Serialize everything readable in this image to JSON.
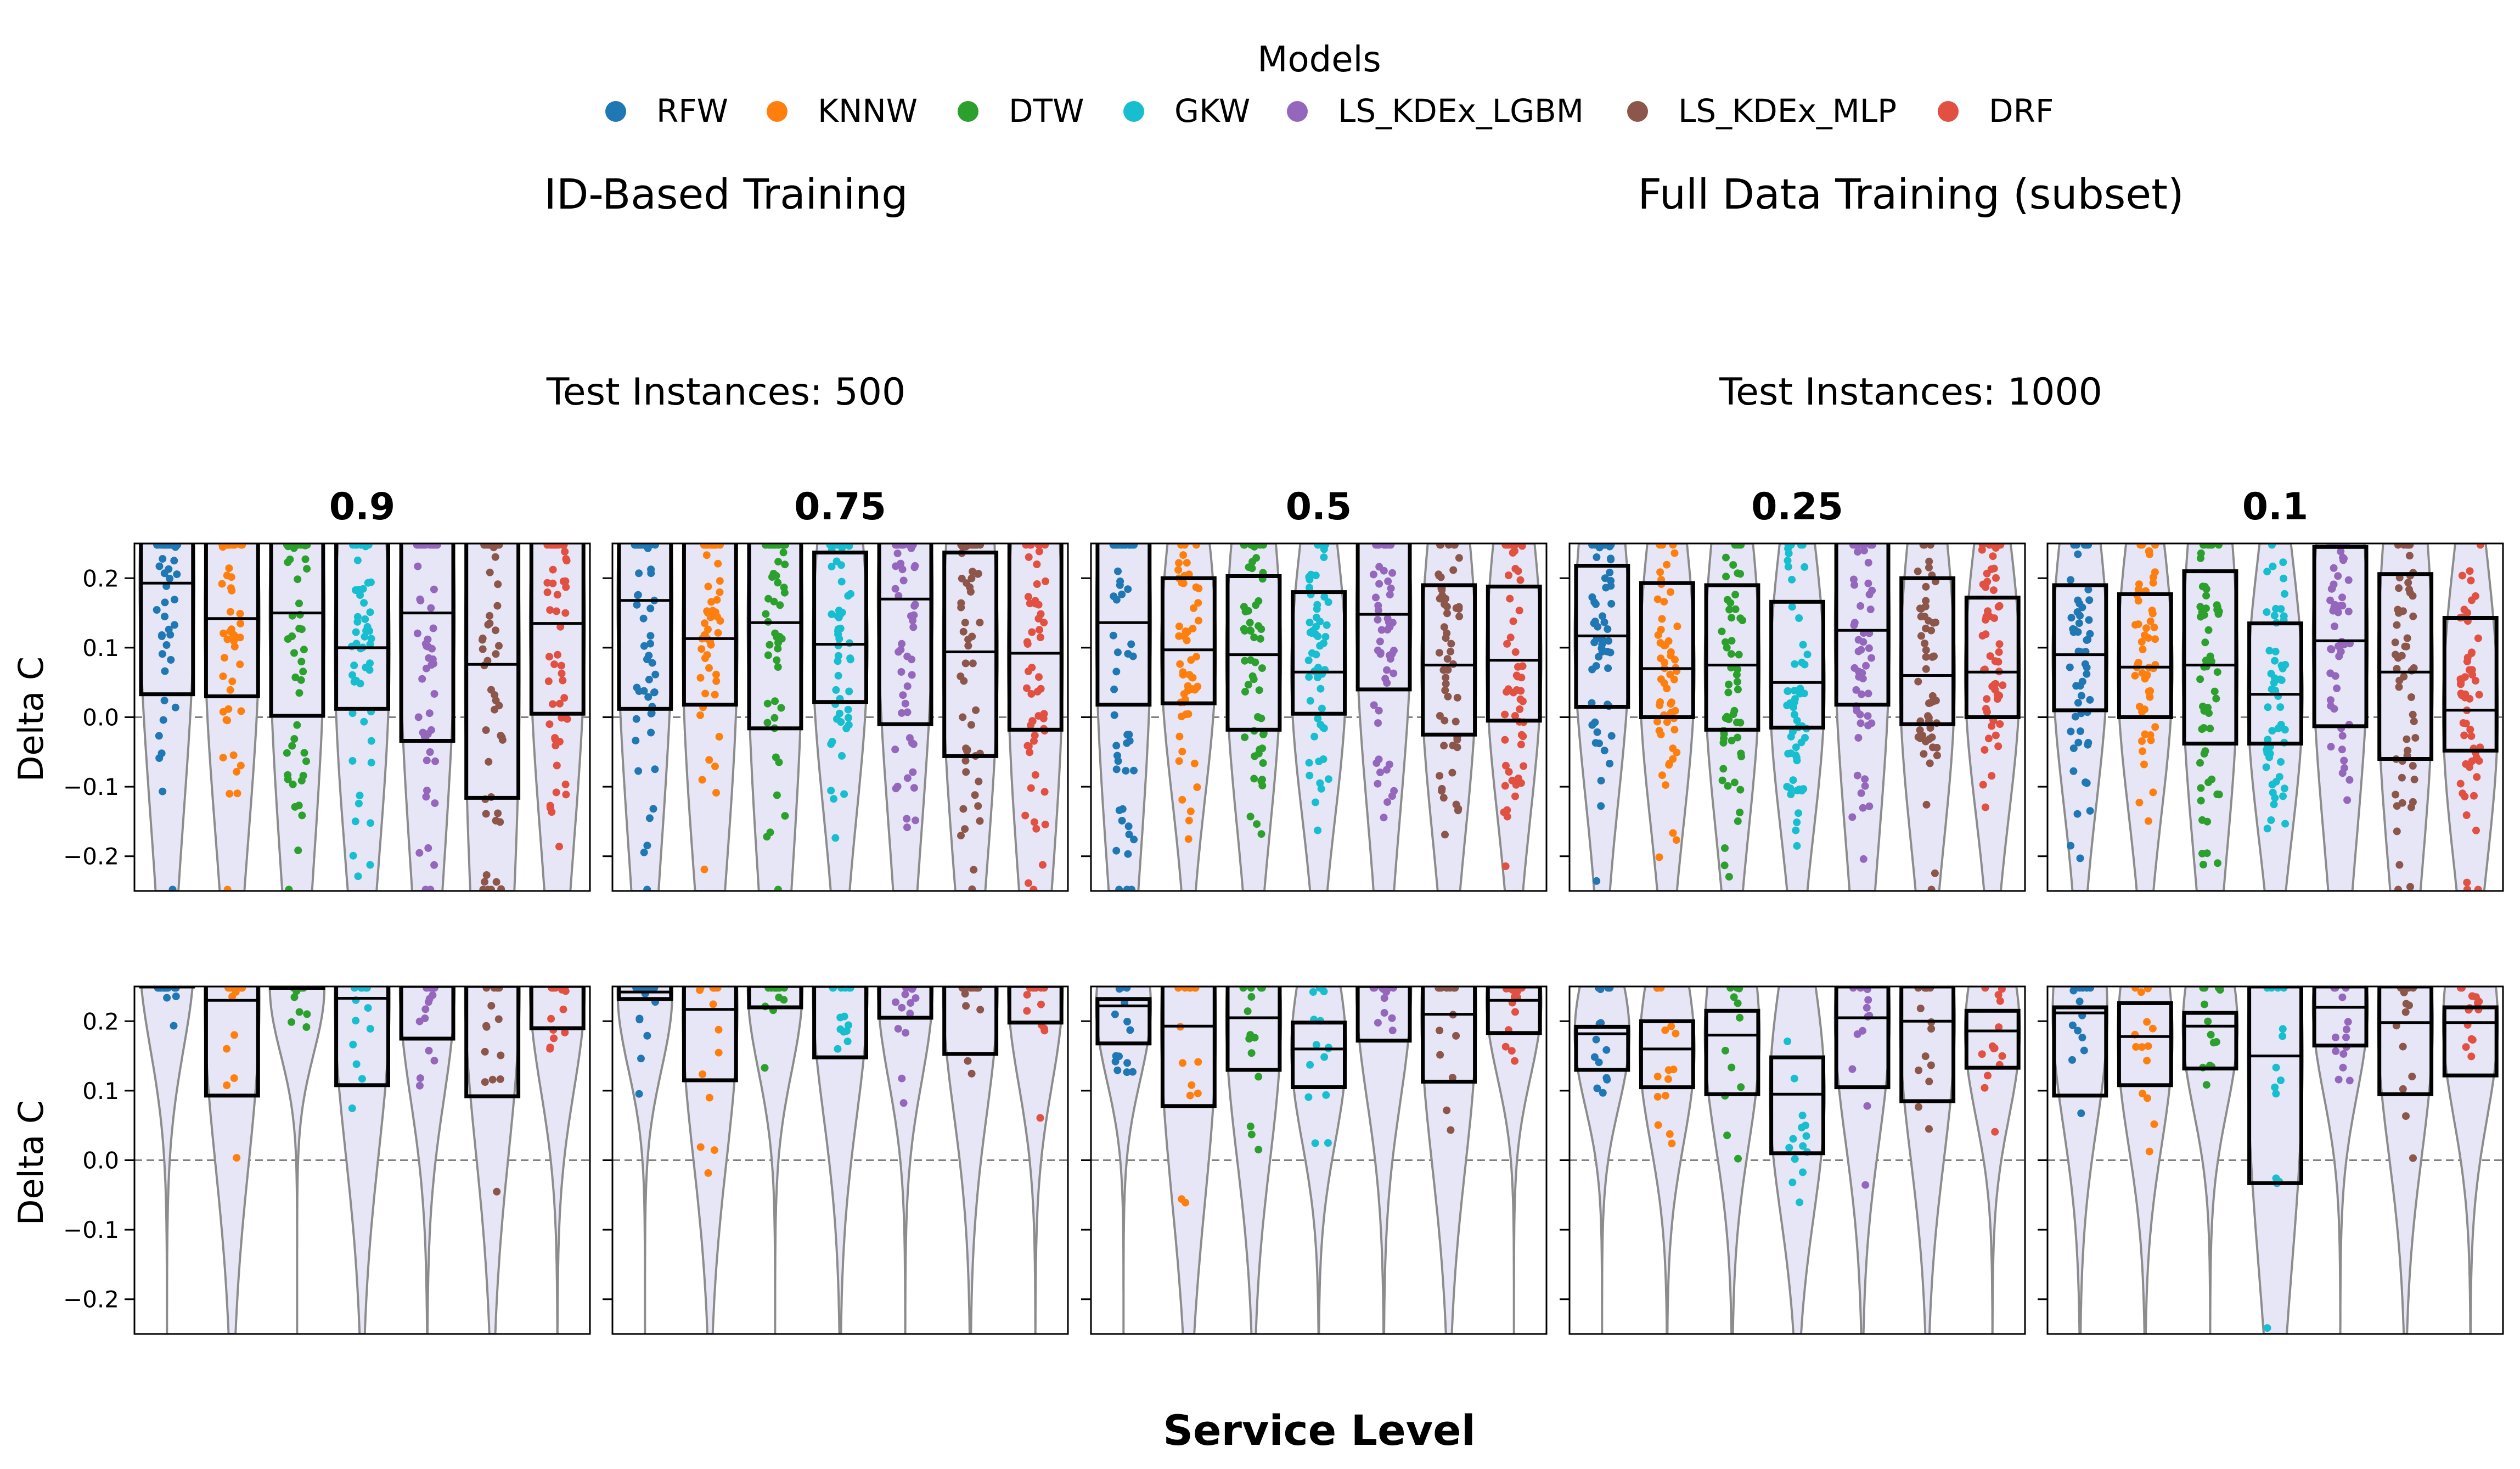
{
  "legend": {
    "title": "Models",
    "entries": [
      {
        "name": "RFW",
        "color": "#1f77b4"
      },
      {
        "name": "KNNW",
        "color": "#ff7f0e"
      },
      {
        "name": "DTW",
        "color": "#2ca02c"
      },
      {
        "name": "GKW",
        "color": "#17becf"
      },
      {
        "name": "LS_KDEx_LGBM",
        "color": "#9467bd"
      },
      {
        "name": "LS_KDEx_MLP",
        "color": "#8c564b"
      },
      {
        "name": "DRF",
        "color": "#e15040"
      }
    ]
  },
  "groups": [
    {
      "title": "ID-Based Training",
      "subtitle": "Test Instances: 500"
    },
    {
      "title": "Full Data Training (subset)",
      "subtitle": "Test Instances: 1000"
    }
  ],
  "xlabel": "Service Level",
  "ylabel": "Delta C",
  "chart_data": {
    "type": "violin-box-strip",
    "ylim": [
      -0.25,
      0.25
    ],
    "yticks": [
      -0.2,
      -0.1,
      0.0,
      0.1,
      0.2
    ],
    "ytick_labels": [
      "−0.2",
      "−0.1",
      "0.0",
      "0.1",
      "0.2"
    ],
    "reference_line": 0.0,
    "panels": [
      "0.9",
      "0.75",
      "0.5",
      "0.25",
      "0.1"
    ],
    "models": [
      "RFW",
      "KNNW",
      "DTW",
      "GKW",
      "LS_KDEx_LGBM",
      "LS_KDEx_MLP",
      "DRF"
    ],
    "rows": [
      {
        "ylabel": "Delta C",
        "boxes": [
          [
            [
              0.033,
              0.193,
              0.35
            ],
            [
              0.03,
              0.142,
              0.32
            ],
            [
              0.002,
              0.15,
              0.35
            ],
            [
              0.012,
              0.1,
              0.3
            ],
            [
              -0.034,
              0.15,
              0.32
            ],
            [
              -0.116,
              0.076,
              0.38
            ],
            [
              0.005,
              0.135,
              0.3
            ]
          ],
          [
            [
              0.012,
              0.168,
              0.35
            ],
            [
              0.018,
              0.113,
              0.33
            ],
            [
              -0.016,
              0.136,
              0.35
            ],
            [
              0.022,
              0.105,
              0.237
            ],
            [
              -0.01,
              0.17,
              0.3
            ],
            [
              -0.056,
              0.094,
              0.237
            ],
            [
              -0.018,
              0.092,
              0.3
            ]
          ],
          [
            [
              0.018,
              0.136,
              0.35
            ],
            [
              0.02,
              0.097,
              0.2
            ],
            [
              -0.018,
              0.09,
              0.203
            ],
            [
              0.005,
              0.065,
              0.18
            ],
            [
              0.04,
              0.148,
              0.3
            ],
            [
              -0.025,
              0.075,
              0.19
            ],
            [
              -0.005,
              0.082,
              0.188
            ]
          ],
          [
            [
              0.015,
              0.117,
              0.218
            ],
            [
              0.0,
              0.07,
              0.193
            ],
            [
              -0.018,
              0.075,
              0.19
            ],
            [
              -0.015,
              0.05,
              0.166
            ],
            [
              0.018,
              0.125,
              0.3
            ],
            [
              -0.01,
              0.06,
              0.2
            ],
            [
              0.0,
              0.065,
              0.172
            ]
          ],
          [
            [
              0.01,
              0.09,
              0.19
            ],
            [
              0.0,
              0.072,
              0.177
            ],
            [
              -0.038,
              0.075,
              0.21
            ],
            [
              -0.038,
              0.033,
              0.135
            ],
            [
              -0.013,
              0.11,
              0.245
            ],
            [
              -0.06,
              0.065,
              0.206
            ],
            [
              -0.048,
              0.01,
              0.143
            ]
          ]
        ],
        "n_points": 55
      },
      {
        "ylabel": "Delta C",
        "boxes": [
          [
            [
              0.25,
              0.3,
              0.35
            ],
            [
              0.093,
              0.23,
              0.3
            ],
            [
              0.248,
              0.25,
              0.3
            ],
            [
              0.108,
              0.233,
              0.3
            ],
            [
              0.175,
              0.25,
              0.3
            ],
            [
              0.092,
              0.25,
              0.3
            ],
            [
              0.19,
              0.25,
              0.3
            ]
          ],
          [
            [
              0.232,
              0.242,
              0.3
            ],
            [
              0.115,
              0.217,
              0.3
            ],
            [
              0.22,
              0.25,
              0.3
            ],
            [
              0.148,
              0.25,
              0.3
            ],
            [
              0.205,
              0.25,
              0.3
            ],
            [
              0.153,
              0.25,
              0.3
            ],
            [
              0.198,
              0.25,
              0.3
            ]
          ],
          [
            [
              0.168,
              0.222,
              0.232
            ],
            [
              0.078,
              0.193,
              0.3
            ],
            [
              0.13,
              0.205,
              0.3
            ],
            [
              0.105,
              0.16,
              0.198
            ],
            [
              0.172,
              0.25,
              0.3
            ],
            [
              0.113,
              0.21,
              0.3
            ],
            [
              0.183,
              0.23,
              0.25
            ]
          ],
          [
            [
              0.13,
              0.182,
              0.192
            ],
            [
              0.105,
              0.16,
              0.2
            ],
            [
              0.095,
              0.18,
              0.215
            ],
            [
              0.01,
              0.095,
              0.148
            ],
            [
              0.105,
              0.205,
              0.25
            ],
            [
              0.085,
              0.2,
              0.25
            ],
            [
              0.133,
              0.186,
              0.215
            ]
          ],
          [
            [
              0.093,
              0.212,
              0.22
            ],
            [
              0.108,
              0.178,
              0.226
            ],
            [
              0.132,
              0.193,
              0.212
            ],
            [
              -0.033,
              0.15,
              0.25
            ],
            [
              0.165,
              0.22,
              0.25
            ],
            [
              0.095,
              0.198,
              0.25
            ],
            [
              0.122,
              0.198,
              0.22
            ]
          ]
        ],
        "n_points": 14
      }
    ]
  }
}
